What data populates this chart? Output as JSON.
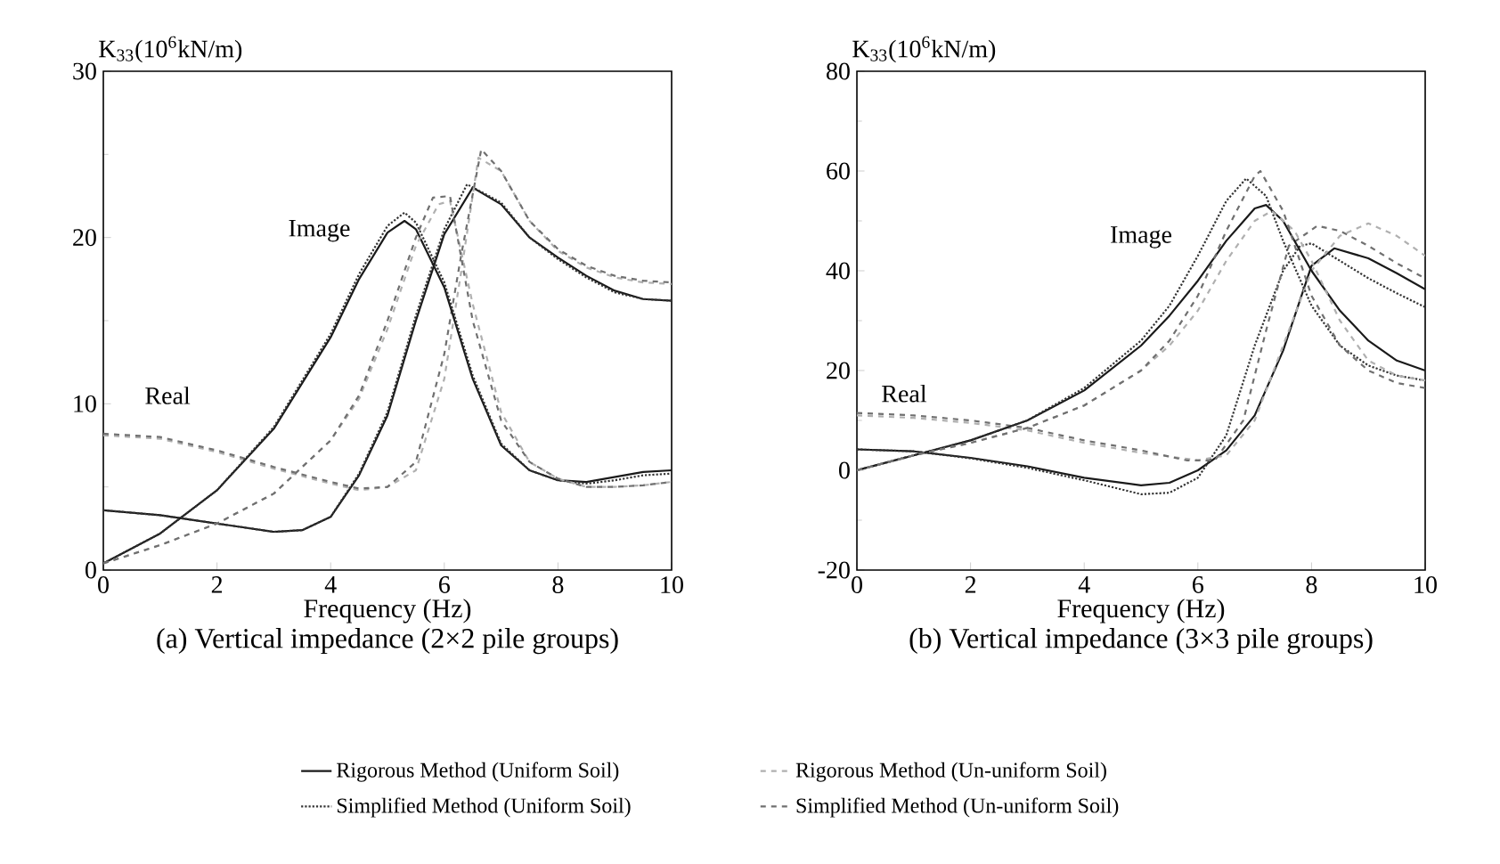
{
  "chart_data": [
    {
      "type": "line",
      "title": "(a) Vertical impedance (2×2 pile groups)",
      "xlabel": "Frequency (Hz)",
      "ylabel": "K$_{33}$(10$^{6}$kN/m)",
      "xlim": [
        0,
        10
      ],
      "ylim": [
        0,
        30
      ],
      "xticks": [
        0,
        2,
        4,
        6,
        8,
        10
      ],
      "yticks": [
        0,
        10,
        20,
        30
      ],
      "legend": "bottom",
      "annotations": [
        "Image",
        "Real"
      ],
      "series": [
        {
          "name": "Rigorous Method (Uniform Soil)",
          "color": "#1a1a1a",
          "line_style": "solid",
          "x": [
            0,
            1,
            2,
            3,
            3.5,
            4,
            4.5,
            5,
            5.5,
            6,
            6.5,
            7,
            7.5,
            8,
            8.5,
            9,
            9.5,
            10
          ],
          "values": [
            3.6,
            3.3,
            2.8,
            2.3,
            2.4,
            3.2,
            5.7,
            9.3,
            15,
            20.2,
            23,
            22,
            20,
            18.8,
            17.7,
            16.8,
            16.3,
            16.2
          ]
        },
        {
          "name": "Simplified Method (Uniform Soil)",
          "color": "#333333",
          "line_style": "dotted",
          "x": [
            0,
            1,
            2,
            3,
            3.5,
            4,
            4.5,
            5,
            5.5,
            6,
            6.4,
            7,
            7.5,
            8,
            8.5,
            9,
            9.5,
            10
          ],
          "values": [
            3.6,
            3.3,
            2.8,
            2.3,
            2.4,
            3.2,
            5.8,
            9.5,
            15.3,
            20.5,
            23.2,
            22.1,
            20,
            18.7,
            17.6,
            16.7,
            16.3,
            16.2
          ]
        },
        {
          "name": "Rigorous Method (Un-uniform Soil)",
          "color": "#b0b0b0",
          "line_style": "dashed",
          "x": [
            0,
            1,
            2,
            3,
            4,
            4.5,
            5,
            5.5,
            6,
            6.3,
            6.6,
            7,
            7.5,
            8,
            8.5,
            9,
            9.5,
            10
          ],
          "values": [
            8.1,
            7.9,
            7.1,
            6.1,
            5.2,
            4.8,
            5,
            6,
            11.5,
            18,
            24.8,
            24,
            21,
            19.2,
            18.2,
            17.6,
            17.3,
            17.2
          ]
        },
        {
          "name": "Simplified Method (Un-uniform Soil)",
          "color": "#707070",
          "line_style": "dashed",
          "x": [
            0,
            1,
            2,
            3,
            4,
            4.5,
            5,
            5.5,
            6,
            6.3,
            6.65,
            7,
            7.5,
            8,
            8.5,
            9,
            9.5,
            10
          ],
          "values": [
            8.2,
            8,
            7.2,
            6.2,
            5.3,
            4.9,
            5,
            6.5,
            13,
            19,
            25.3,
            24,
            21,
            19.3,
            18.3,
            17.7,
            17.4,
            17.3
          ]
        },
        {
          "color": "#1a1a1a",
          "line_style": "solid",
          "x": [
            0,
            1,
            2,
            3,
            4,
            4.5,
            5,
            5.3,
            5.5,
            6,
            6.5,
            7,
            7.5,
            8,
            8.5,
            9,
            9.5,
            10
          ],
          "values": [
            0.4,
            2.2,
            4.8,
            8.5,
            14,
            17.5,
            20.3,
            21,
            20.5,
            17,
            11.5,
            7.5,
            6,
            5.4,
            5.3,
            5.6,
            5.9,
            6
          ]
        },
        {
          "color": "#333333",
          "line_style": "dotted",
          "x": [
            0,
            1,
            2,
            3,
            4,
            4.5,
            5,
            5.3,
            5.5,
            6,
            6.5,
            7,
            7.5,
            8,
            8.5,
            9,
            9.5,
            10
          ],
          "values": [
            0.4,
            2.2,
            4.8,
            8.6,
            14.2,
            17.8,
            20.7,
            21.5,
            20.9,
            17.3,
            11.7,
            7.6,
            6,
            5.4,
            5.2,
            5.4,
            5.7,
            5.8
          ]
        },
        {
          "color": "#b0b0b0",
          "line_style": "dashed",
          "x": [
            0,
            1,
            2,
            3,
            4,
            4.5,
            5,
            5.5,
            5.9,
            6.1,
            6.5,
            7,
            7.5,
            8,
            8.5,
            9,
            9.5,
            10
          ],
          "values": [
            0.4,
            1.5,
            2.8,
            4.6,
            7.8,
            10.3,
            14.5,
            19.5,
            22,
            22.2,
            16,
            9.5,
            6.5,
            5.5,
            5,
            5,
            5.1,
            5.3
          ]
        },
        {
          "color": "#707070",
          "line_style": "dashed",
          "x": [
            0,
            1,
            2,
            3,
            4,
            4.5,
            5,
            5.5,
            5.8,
            6.1,
            6.5,
            7,
            7.5,
            8,
            8.5,
            9,
            9.5,
            10
          ],
          "values": [
            0.4,
            1.5,
            2.8,
            4.6,
            7.8,
            10.5,
            15,
            20,
            22.4,
            22.5,
            15,
            9,
            6.5,
            5.5,
            5,
            5,
            5.1,
            5.3
          ]
        }
      ]
    },
    {
      "type": "line",
      "title": "(b) Vertical impedance (3×3 pile groups)",
      "xlabel": "Frequency (Hz)",
      "ylabel": "K$_{33}$(10$^{6}$kN/m)",
      "xlim": [
        0,
        10
      ],
      "ylim": [
        -20,
        80
      ],
      "xticks": [
        0,
        2,
        4,
        6,
        8,
        10
      ],
      "yticks": [
        -20,
        0,
        20,
        40,
        60,
        80
      ],
      "annotations": [
        "Image",
        "Real"
      ],
      "series": [
        {
          "color": "#1a1a1a",
          "line_style": "solid",
          "x": [
            0,
            1,
            2,
            3,
            4,
            5,
            5.5,
            6,
            6.5,
            7,
            7.5,
            8,
            8.4,
            9,
            9.5,
            10
          ],
          "values": [
            4.2,
            3.8,
            2.5,
            0.8,
            -1.5,
            -3,
            -2.5,
            0,
            4,
            11,
            24,
            41,
            44.5,
            42.5,
            39.5,
            36.3
          ]
        },
        {
          "color": "#333333",
          "line_style": "dotted",
          "x": [
            0,
            1,
            2,
            3,
            4,
            5,
            5.5,
            6,
            6.5,
            7,
            7.5,
            7.8,
            8,
            8.5,
            9,
            9.5,
            10
          ],
          "values": [
            4.2,
            3.8,
            2.4,
            0.5,
            -2,
            -4.8,
            -4.5,
            -1.5,
            7,
            25,
            40,
            45,
            45.5,
            42,
            38.5,
            35.5,
            32.7
          ]
        },
        {
          "color": "#b0b0b0",
          "line_style": "dashed",
          "x": [
            0,
            1,
            2,
            3,
            4,
            5,
            6,
            6.5,
            7,
            7.5,
            8,
            8.5,
            9,
            9.5,
            10
          ],
          "values": [
            11,
            10.5,
            9.5,
            8,
            5.5,
            3.5,
            2,
            3,
            10,
            25,
            40,
            47,
            49.5,
            47,
            43
          ]
        },
        {
          "color": "#707070",
          "line_style": "dashed",
          "x": [
            0,
            1,
            2,
            3,
            4,
            5,
            5.8,
            6.3,
            6.8,
            7.2,
            7.6,
            8.1,
            8.5,
            9,
            9.5,
            10
          ],
          "values": [
            11.5,
            11,
            10,
            8.5,
            6,
            4,
            2,
            2,
            10,
            28,
            45,
            49,
            48,
            45,
            41.5,
            38.5
          ]
        },
        {
          "color": "#1a1a1a",
          "line_style": "solid",
          "x": [
            0,
            1,
            2,
            3,
            4,
            5,
            5.5,
            6,
            6.5,
            7,
            7.2,
            7.5,
            8,
            8.5,
            9,
            9.5,
            10
          ],
          "values": [
            0,
            3,
            6,
            10,
            16,
            25,
            31,
            38,
            46,
            52.5,
            53.2,
            50,
            40,
            32,
            26,
            22,
            20
          ]
        },
        {
          "color": "#333333",
          "line_style": "dotted",
          "x": [
            0,
            1,
            2,
            3,
            4,
            5,
            5.5,
            6,
            6.5,
            6.85,
            7.2,
            7.5,
            8,
            8.5,
            9,
            9.5,
            10
          ],
          "values": [
            0,
            3,
            6,
            10,
            16.5,
            26,
            33,
            43,
            54,
            58.5,
            55,
            46,
            33,
            25,
            21,
            19,
            18
          ]
        },
        {
          "color": "#b0b0b0",
          "line_style": "dashed",
          "x": [
            0,
            1,
            2,
            3,
            4,
            5,
            5.5,
            6,
            6.5,
            7,
            7.3,
            7.7,
            8,
            8.5,
            9,
            9.5,
            10
          ],
          "values": [
            0,
            3,
            5.5,
            8.5,
            13,
            20,
            25,
            32,
            42,
            50,
            52,
            48,
            42,
            30,
            22,
            19,
            18
          ]
        },
        {
          "color": "#707070",
          "line_style": "dashed",
          "x": [
            0,
            1,
            2,
            3,
            4,
            5,
            5.5,
            6,
            6.5,
            7,
            7.1,
            7.5,
            8,
            8.5,
            9,
            9.5,
            10
          ],
          "values": [
            0,
            3,
            5.5,
            8.5,
            13,
            20,
            26,
            35,
            48,
            59,
            60,
            52,
            35,
            25,
            20,
            17.5,
            16.5
          ]
        }
      ]
    }
  ]
}
